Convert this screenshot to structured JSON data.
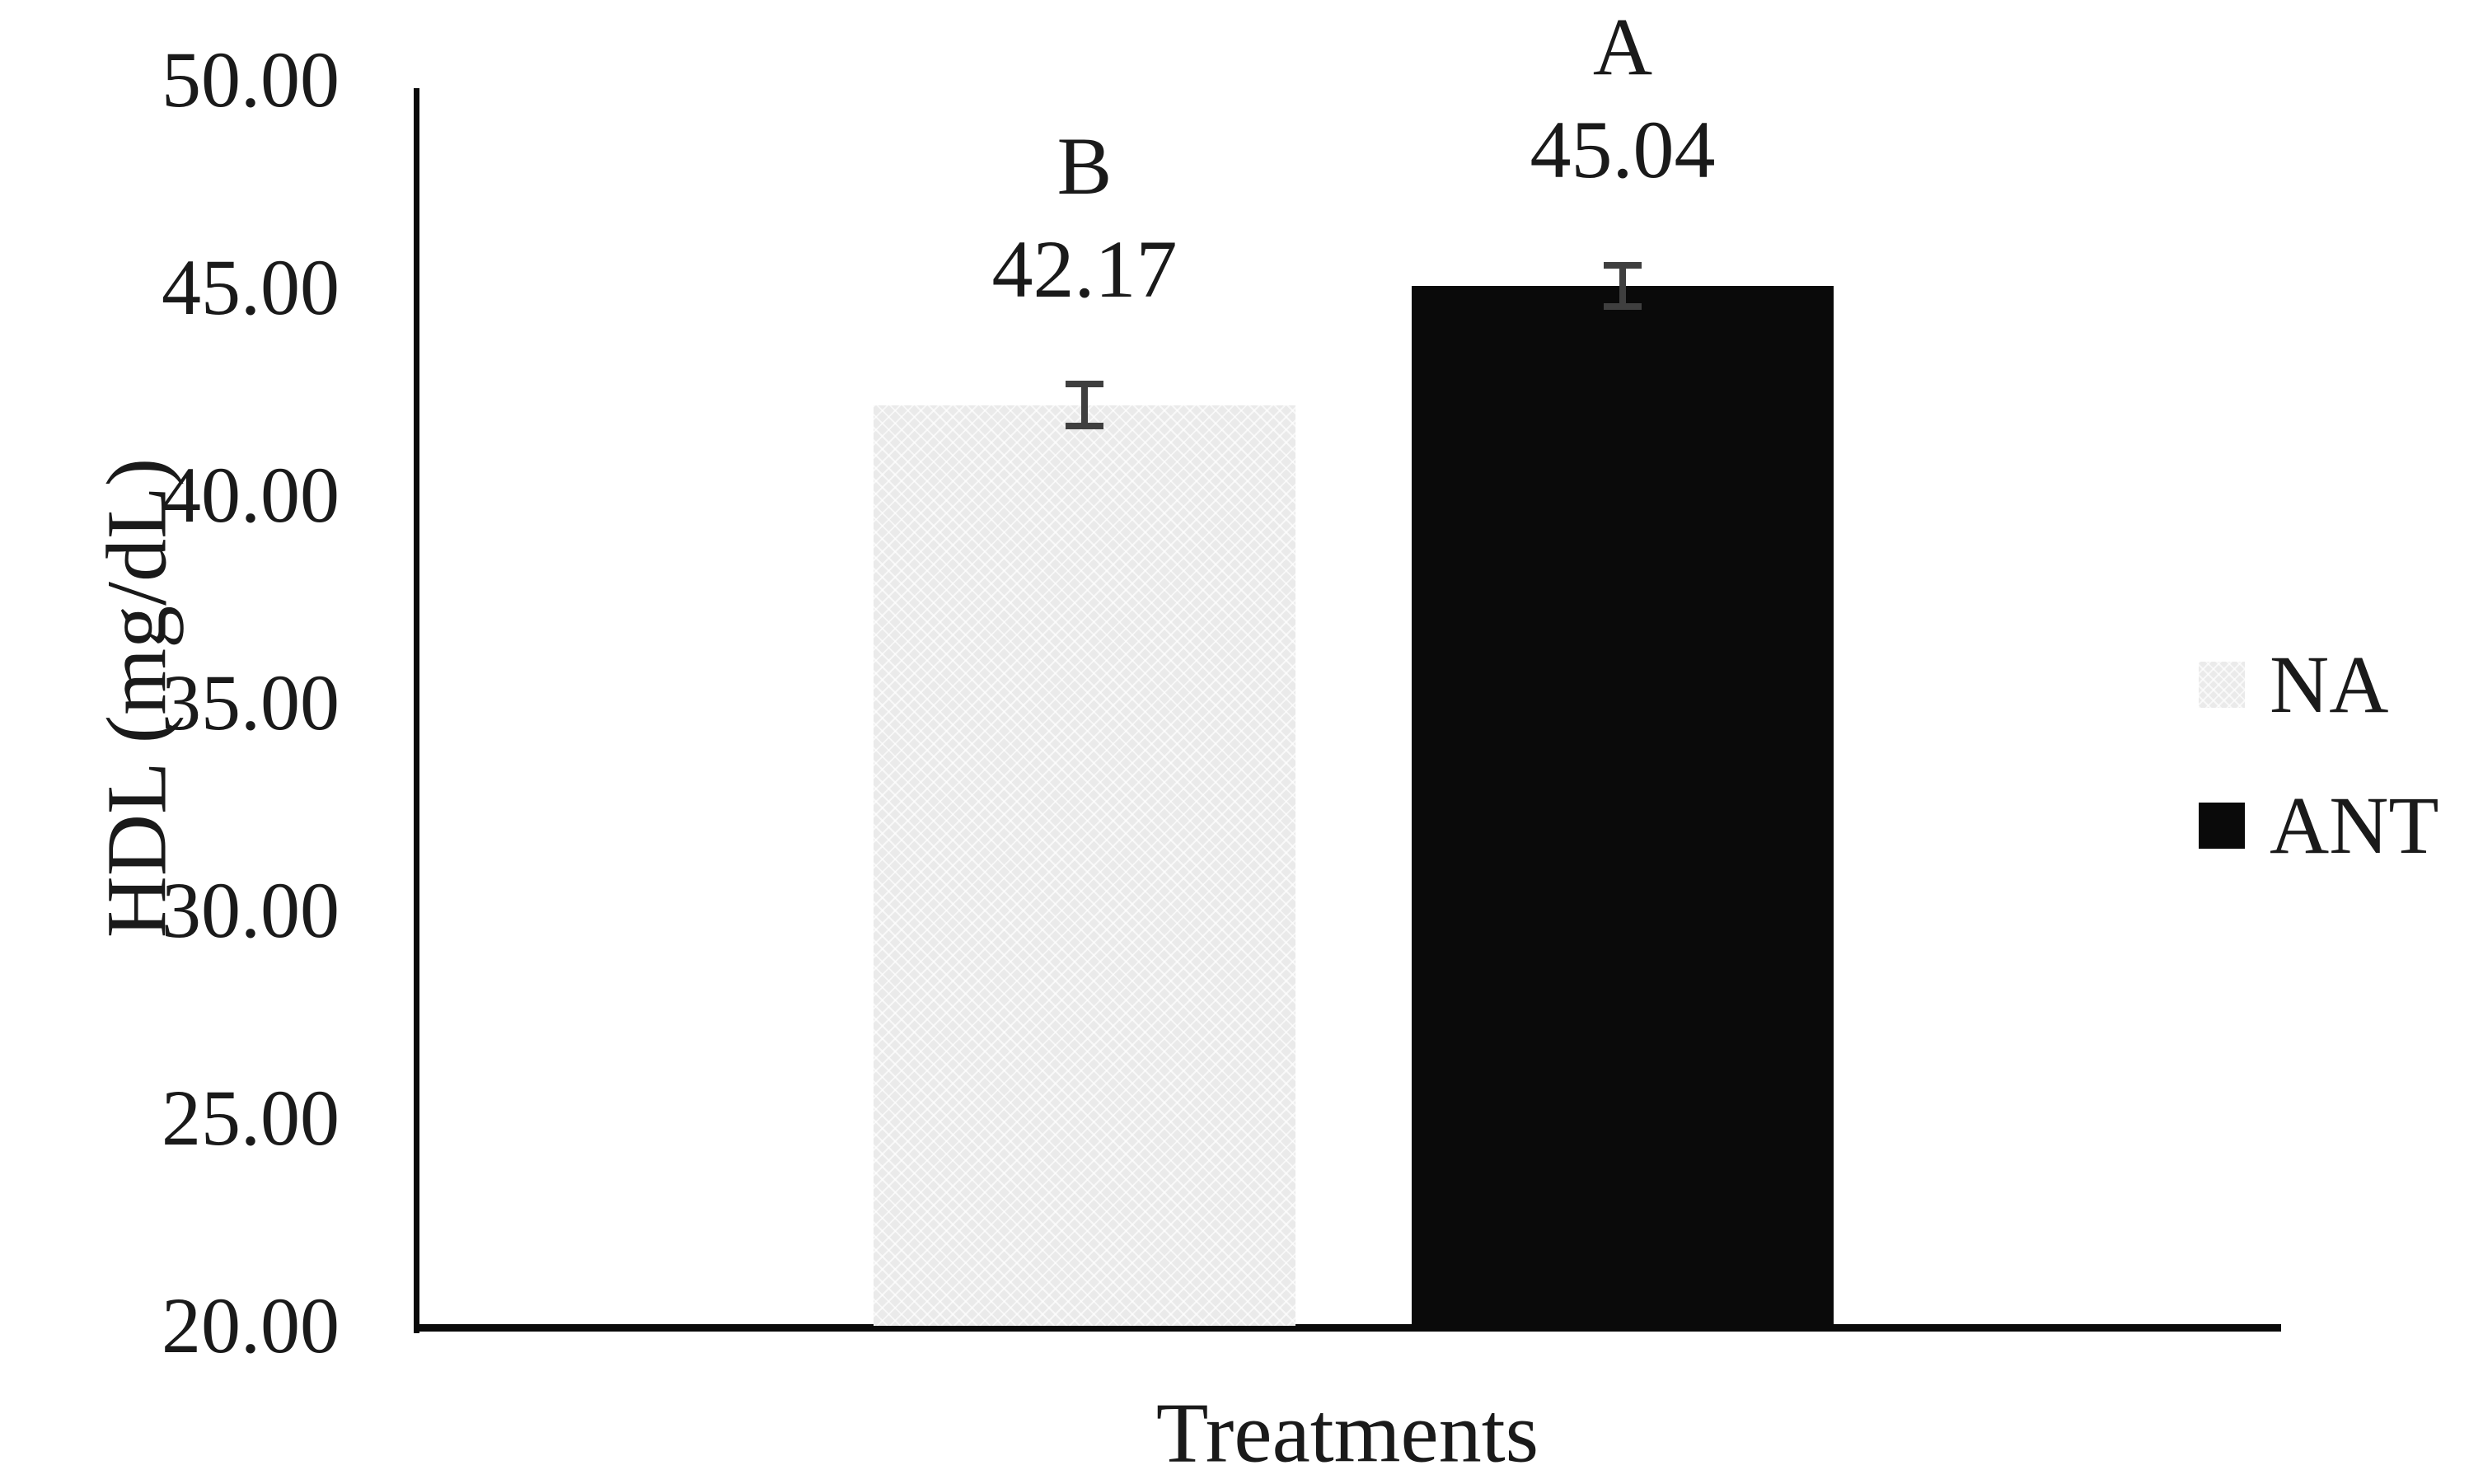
{
  "chart_data": {
    "type": "bar",
    "title": "",
    "xlabel": "Treatments",
    "ylabel": "HDL (mg/dL)",
    "ylim": [
      20,
      50
    ],
    "ytick_interval": 5,
    "yticks": [
      "50.00",
      "45.00",
      "40.00",
      "35.00",
      "30.00",
      "25.00",
      "20.00"
    ],
    "grid": false,
    "legend_position": "right",
    "categories": [
      "NA",
      "ANT"
    ],
    "bars": [
      {
        "category": "NA",
        "value": 42.17,
        "value_label": "42.17",
        "sig_letter": "B",
        "error_bar": 0.5,
        "fill": "#eaeaea",
        "fill_style": "light-gray-texture"
      },
      {
        "category": "ANT",
        "value": 45.04,
        "value_label": "45.04",
        "sig_letter": "A",
        "error_bar": 0.5,
        "fill": "#0a0a0a",
        "fill_style": "solid"
      }
    ],
    "legend": [
      {
        "label": "NA",
        "swatch_color": "#eaeaea",
        "swatch_style": "light-gray-texture"
      },
      {
        "label": "ANT",
        "swatch_color": "#0a0a0a",
        "swatch_style": "solid"
      }
    ]
  },
  "colors": {
    "background": "#ffffff",
    "axis": "#0a0a0a",
    "text": "#1a1a1a",
    "error_bar": "#3f3f3f"
  }
}
